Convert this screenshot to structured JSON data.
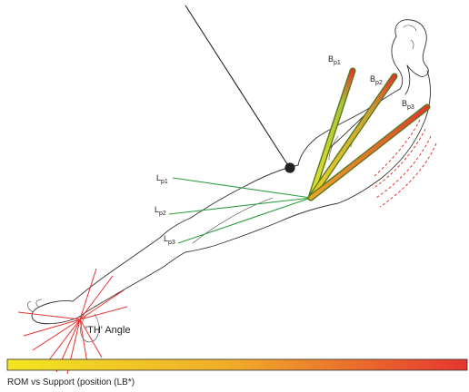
{
  "colors": {
    "gradient_start": "#f2e622",
    "gradient_end": "#e5352f",
    "lever_line": "#2f9e3f",
    "angle_line": "#e5352f",
    "bar_outer": "#5a7a1e",
    "bar_inner_start": "#d9d41e",
    "bar_inner_end": "#e5352f",
    "support_cable": "#222222",
    "pivot": "#222222"
  },
  "labels": {
    "bp1": {
      "main": "B",
      "sub": "p1"
    },
    "bp2": {
      "main": "B",
      "sub": "p2"
    },
    "bp3": {
      "main": "B",
      "sub": "p3"
    },
    "lp1": {
      "main": "L",
      "sub": "p1"
    },
    "lp2": {
      "main": "L",
      "sub": "p2"
    },
    "lp3": {
      "main": "L",
      "sub": "p3"
    },
    "angle": "'TH' Angle"
  },
  "caption": "ROM vs Support  (position (LB*)",
  "icons": {
    "pivot": "filled-circle-icon"
  }
}
